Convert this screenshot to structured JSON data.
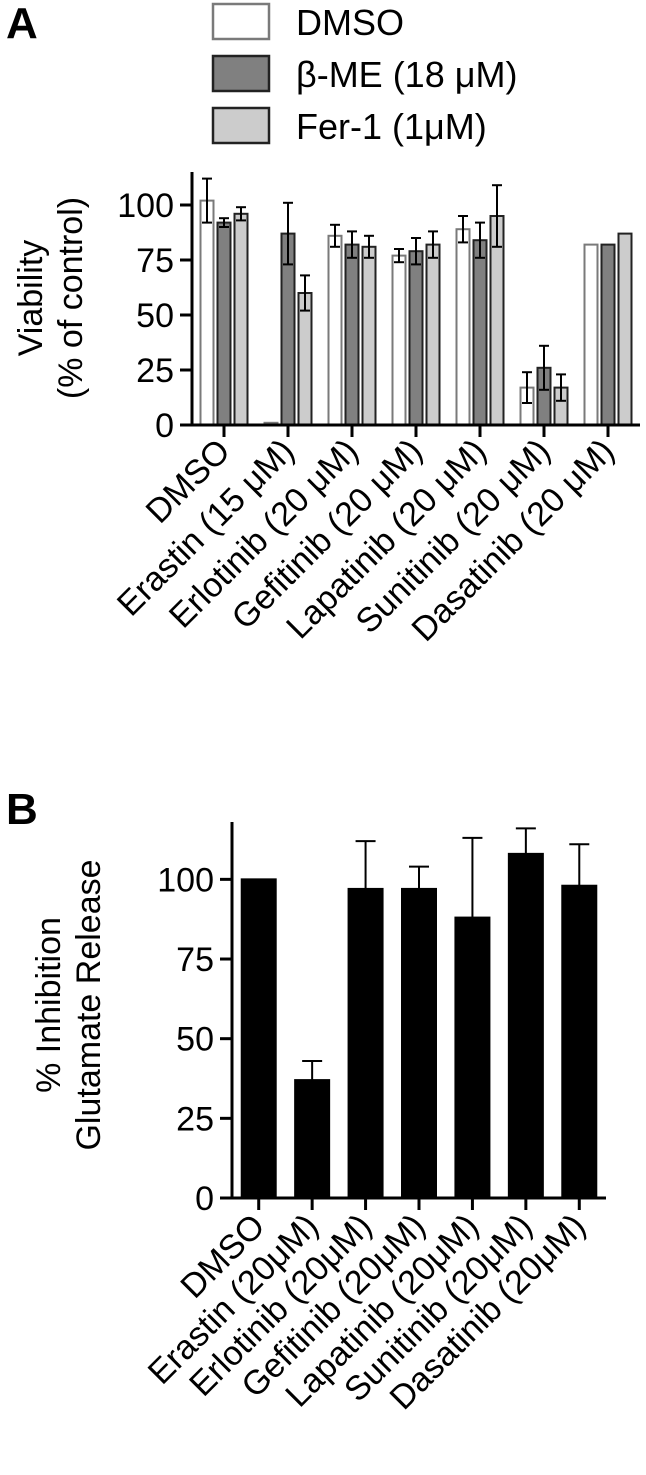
{
  "panels": [
    {
      "letter": "A",
      "chart_data": {
        "type": "bar",
        "ylabel": [
          "Viability",
          "(% of control)"
        ],
        "ylim": [
          0,
          115
        ],
        "yticks": [
          0,
          25,
          50,
          75,
          100
        ],
        "categories": [
          "DMSO",
          "Erastin (15 μM)",
          "Erlotinib (20 μM)",
          "Gefitinib (20 μM)",
          "Lapatinib (20 μM)",
          "Sunitinib (20 μM)",
          "Dasatinib (20 μM)"
        ],
        "legend": {
          "position": "top"
        },
        "series": [
          {
            "name": "DMSO",
            "color": "#ffffff",
            "stroke": "#7a7a7a",
            "values": [
              102,
              1,
              86,
              77,
              89,
              17,
              82
            ],
            "errors": [
              10,
              0,
              5,
              3,
              6,
              7,
              0
            ]
          },
          {
            "name": "β-ME (18 μM)",
            "color": "#808080",
            "stroke": "#222222",
            "values": [
              92,
              87,
              82,
              79,
              84,
              26,
              82
            ],
            "errors": [
              2,
              14,
              6,
              6,
              8,
              10,
              0
            ]
          },
          {
            "name": "Fer-1 (1μM)",
            "color": "#cccccc",
            "stroke": "#222222",
            "values": [
              96,
              60,
              81,
              82,
              95,
              17,
              87
            ],
            "errors": [
              3,
              8,
              5,
              6,
              14,
              6,
              0
            ]
          }
        ]
      }
    },
    {
      "letter": "B",
      "chart_data": {
        "type": "bar",
        "ylabel": [
          "% Inhibition",
          "Glutamate Release"
        ],
        "ylim": [
          0,
          118
        ],
        "yticks": [
          0,
          25,
          50,
          75,
          100
        ],
        "categories": [
          "DMSO",
          "Erastin (20μM)",
          "Erlotinib (20μM)",
          "Gefitinib (20μM)",
          "Lapatinib (20μM)",
          "Sunitinib (20μM)",
          "Dasatinib (20μM)"
        ],
        "series": [
          {
            "color": "#000000",
            "stroke": "#000000",
            "values": [
              100,
              37,
              97,
              97,
              88,
              108,
              98
            ],
            "errors": [
              0,
              6,
              15,
              7,
              25,
              8,
              13
            ]
          }
        ]
      }
    }
  ]
}
